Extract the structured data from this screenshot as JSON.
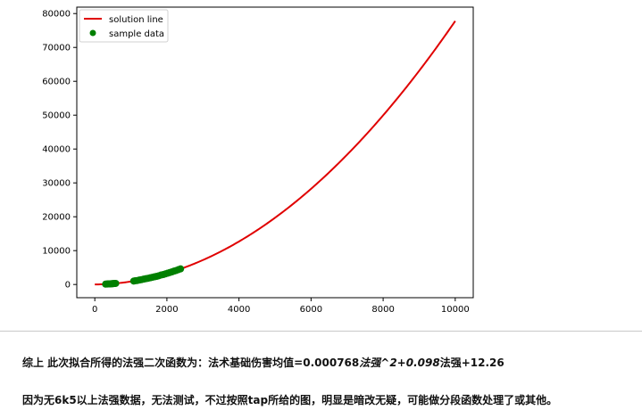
{
  "chart_data": {
    "type": "line",
    "x_ticks": [
      0,
      2000,
      4000,
      6000,
      8000,
      10000
    ],
    "y_ticks": [
      0,
      10000,
      20000,
      30000,
      40000,
      50000,
      60000,
      70000,
      80000
    ],
    "xlim": [
      -500,
      10500
    ],
    "ylim": [
      -3900,
      81900
    ],
    "series": [
      {
        "name": "solution line",
        "kind": "line",
        "color": "#e00000",
        "formula": {
          "a": 0.000768,
          "b": 0.098,
          "c": 12.26
        },
        "x_range": [
          0,
          10000
        ]
      },
      {
        "name": "sample data",
        "kind": "scatter",
        "color": "#008000",
        "x": [
          300,
          340,
          360,
          380,
          400,
          420,
          440,
          460,
          480,
          500,
          520,
          550,
          580,
          1080,
          1120,
          1180,
          1240,
          1300,
          1360,
          1420,
          1480,
          1540,
          1600,
          1660,
          1720,
          1780,
          1840,
          1900,
          1960,
          2020,
          2080,
          2140,
          2200,
          2260,
          2320,
          2380
        ],
        "y": [
          110,
          150,
          160,
          170,
          180,
          190,
          210,
          220,
          240,
          260,
          270,
          300,
          320,
          1010,
          1090,
          1180,
          1320,
          1440,
          1580,
          1720,
          1830,
          1980,
          2130,
          2270,
          2420,
          2590,
          2800,
          2930,
          3130,
          3330,
          3520,
          3720,
          3950,
          4140,
          4390,
          4610
        ]
      }
    ],
    "legend": {
      "placement": "top-left",
      "entries": [
        "solution line",
        "sample data"
      ]
    },
    "grid": false
  },
  "text": {
    "line1_part1": "综上 此次拟合所得的法强二次函数为：法术基础伤害均值=0.000768",
    "line1_italic1": "法强",
    "line1_italic2": "^2+0.098",
    "line1_part2": "法强+12.26",
    "line2": "因为无6k5以上法强数据，无法测试，不过按照tap所给的图，明显是暗改无疑，可能做分段函数处理了或其他。"
  },
  "colors": {
    "line": "#e00000",
    "points": "#008000",
    "axis": "#000000"
  }
}
